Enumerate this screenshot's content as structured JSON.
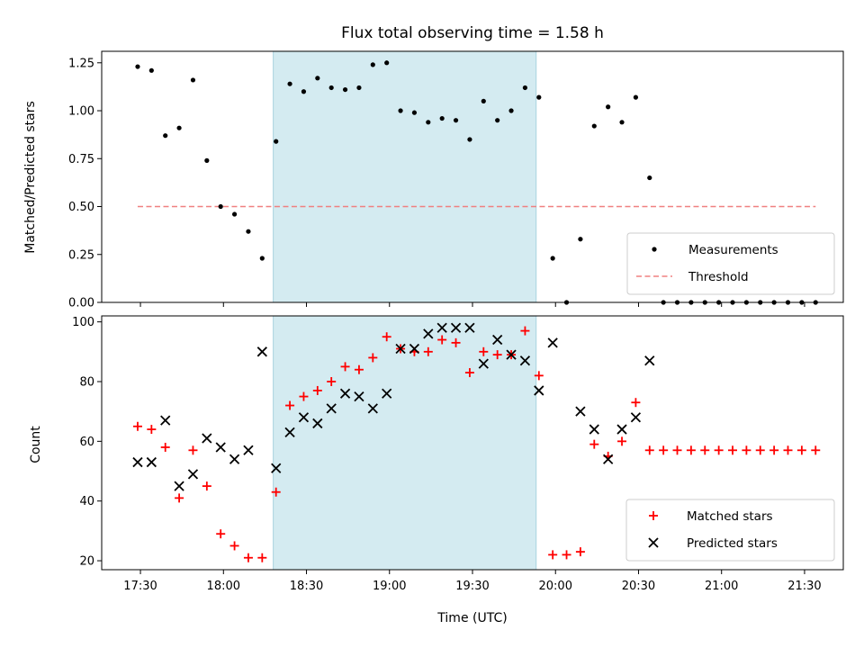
{
  "chart_data": [
    {
      "type": "scatter",
      "title": "Flux total observing time = 1.58 h",
      "ylabel": "Matched/Predicted stars",
      "ylim": [
        0,
        1.31
      ],
      "yticks": [
        "0.00",
        "0.25",
        "0.50",
        "0.75",
        "1.00",
        "1.25"
      ],
      "yticks_values": [
        0,
        0.25,
        0.5,
        0.75,
        1.0,
        1.25
      ],
      "legend_position": "lower-right",
      "highlight_span": {
        "start": "18:18",
        "end": "19:53",
        "color": "#d4ebf1"
      },
      "threshold": {
        "name": "Threshold",
        "value": 0.5,
        "x_start": "17:29",
        "x_end": "21:34",
        "color": "#f08080",
        "style": "dashed"
      },
      "series": [
        {
          "name": "Measurements",
          "color": "#000000",
          "x": [
            "17:29",
            "17:34",
            "17:39",
            "17:44",
            "17:49",
            "17:54",
            "17:59",
            "18:04",
            "18:09",
            "18:14",
            "18:19",
            "18:24",
            "18:29",
            "18:34",
            "18:39",
            "18:44",
            "18:49",
            "18:54",
            "18:59",
            "19:04",
            "19:09",
            "19:14",
            "19:19",
            "19:24",
            "19:29",
            "19:34",
            "19:39",
            "19:44",
            "19:49",
            "19:54",
            "19:59",
            "20:04",
            "20:09",
            "20:14",
            "20:19",
            "20:24",
            "20:29",
            "20:34",
            "20:39",
            "20:44",
            "20:49",
            "20:54",
            "20:59",
            "21:04",
            "21:09",
            "21:14",
            "21:19",
            "21:24",
            "21:29",
            "21:34"
          ],
          "y": [
            1.23,
            1.21,
            0.87,
            0.91,
            1.16,
            0.74,
            0.5,
            0.46,
            0.37,
            0.23,
            0.84,
            1.14,
            1.1,
            1.17,
            1.12,
            1.11,
            1.12,
            1.24,
            1.25,
            1.0,
            0.99,
            0.94,
            0.96,
            0.95,
            0.85,
            1.05,
            0.95,
            1.0,
            1.12,
            1.07,
            0.23,
            0.0,
            0.33,
            0.92,
            1.02,
            0.94,
            1.07,
            0.65,
            0.0,
            0.0,
            0.0,
            0.0,
            0.0,
            0.0,
            0.0,
            0.0,
            0.0,
            0.0,
            0.0,
            0.0
          ]
        }
      ]
    },
    {
      "type": "scatter",
      "xlabel": "Time (UTC)",
      "ylabel": "Count",
      "xlim": [
        "17:16",
        "21:44"
      ],
      "ylim": [
        17,
        102
      ],
      "xticks": [
        "17:30",
        "18:00",
        "18:30",
        "19:00",
        "19:30",
        "20:00",
        "20:30",
        "21:00",
        "21:30"
      ],
      "yticks": [
        "20",
        "40",
        "60",
        "80",
        "100"
      ],
      "yticks_values": [
        20,
        40,
        60,
        80,
        100
      ],
      "legend_position": "lower-right",
      "highlight_span": {
        "start": "18:18",
        "end": "19:53",
        "color": "#d4ebf1"
      },
      "series": [
        {
          "name": "Matched stars",
          "marker": "plus",
          "color": "#ff0000",
          "x": [
            "17:29",
            "17:34",
            "17:39",
            "17:44",
            "17:49",
            "17:54",
            "17:59",
            "18:04",
            "18:09",
            "18:14",
            "18:19",
            "18:24",
            "18:29",
            "18:34",
            "18:39",
            "18:44",
            "18:49",
            "18:54",
            "18:59",
            "19:04",
            "19:09",
            "19:14",
            "19:19",
            "19:24",
            "19:29",
            "19:34",
            "19:39",
            "19:44",
            "19:49",
            "19:54",
            "19:59",
            "20:04",
            "20:09",
            "20:14",
            "20:19",
            "20:24",
            "20:29",
            "20:34",
            "20:39",
            "20:44",
            "20:49",
            "20:54",
            "20:59",
            "21:04",
            "21:09",
            "21:14",
            "21:19",
            "21:24",
            "21:29",
            "21:34"
          ],
          "y": [
            65,
            64,
            58,
            41,
            57,
            45,
            29,
            25,
            21,
            21,
            43,
            72,
            75,
            77,
            80,
            85,
            84,
            88,
            95,
            91,
            90,
            90,
            94,
            93,
            83,
            90,
            89,
            89,
            97,
            82,
            22,
            22,
            23,
            59,
            55,
            60,
            73,
            57,
            57,
            57,
            57,
            57,
            57,
            57,
            57,
            57,
            57,
            57,
            57,
            57
          ]
        },
        {
          "name": "Predicted stars",
          "marker": "x",
          "color": "#000000",
          "x": [
            "17:29",
            "17:34",
            "17:39",
            "17:44",
            "17:49",
            "17:54",
            "17:59",
            "18:04",
            "18:09",
            "18:14",
            "18:19",
            "18:24",
            "18:29",
            "18:34",
            "18:39",
            "18:44",
            "18:49",
            "18:54",
            "18:59",
            "19:04",
            "19:09",
            "19:14",
            "19:19",
            "19:24",
            "19:29",
            "19:34",
            "19:39",
            "19:44",
            "19:49",
            "19:54",
            "19:59",
            "20:09",
            "20:14",
            "20:19",
            "20:24",
            "20:29",
            "20:34"
          ],
          "y": [
            53,
            53,
            67,
            45,
            49,
            61,
            58,
            54,
            57,
            90,
            51,
            63,
            68,
            66,
            71,
            76,
            75,
            71,
            76,
            91,
            91,
            96,
            98,
            98,
            98,
            86,
            94,
            89,
            87,
            77,
            93,
            70,
            64,
            54,
            64,
            68,
            87
          ]
        }
      ]
    }
  ]
}
